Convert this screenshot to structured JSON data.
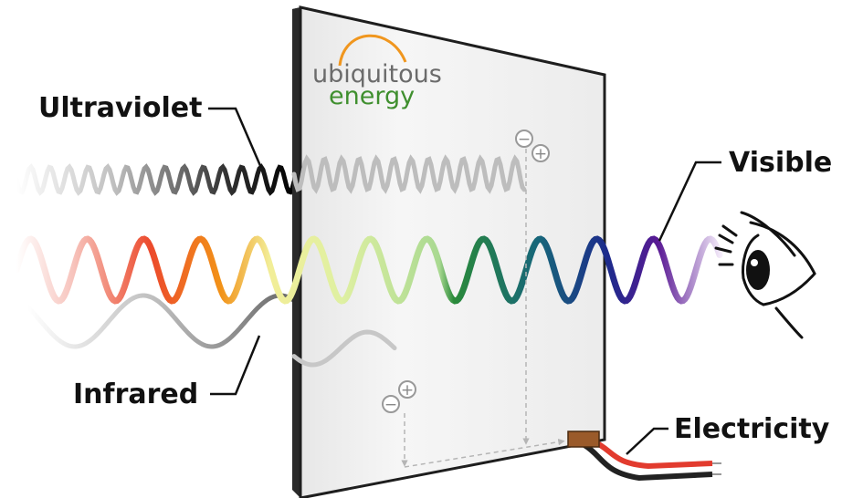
{
  "labels": {
    "ultraviolet": "Ultraviolet",
    "visible": "Visible",
    "infrared": "Infrared",
    "electricity": "Electricity"
  },
  "logo": {
    "line1": "ubiquitous",
    "line2": "energy"
  },
  "signs": {
    "minus": "−",
    "plus": "+"
  },
  "colors": {
    "ultraviolet_wave": "#1a1a1a",
    "infrared_wave": "#8a8a8a",
    "logo_arc": "#f0961e",
    "logo_energy": "#3f8f2e",
    "wire_red": "#e23b2e",
    "wire_black": "#222222",
    "connector": "#9a5a2a"
  }
}
